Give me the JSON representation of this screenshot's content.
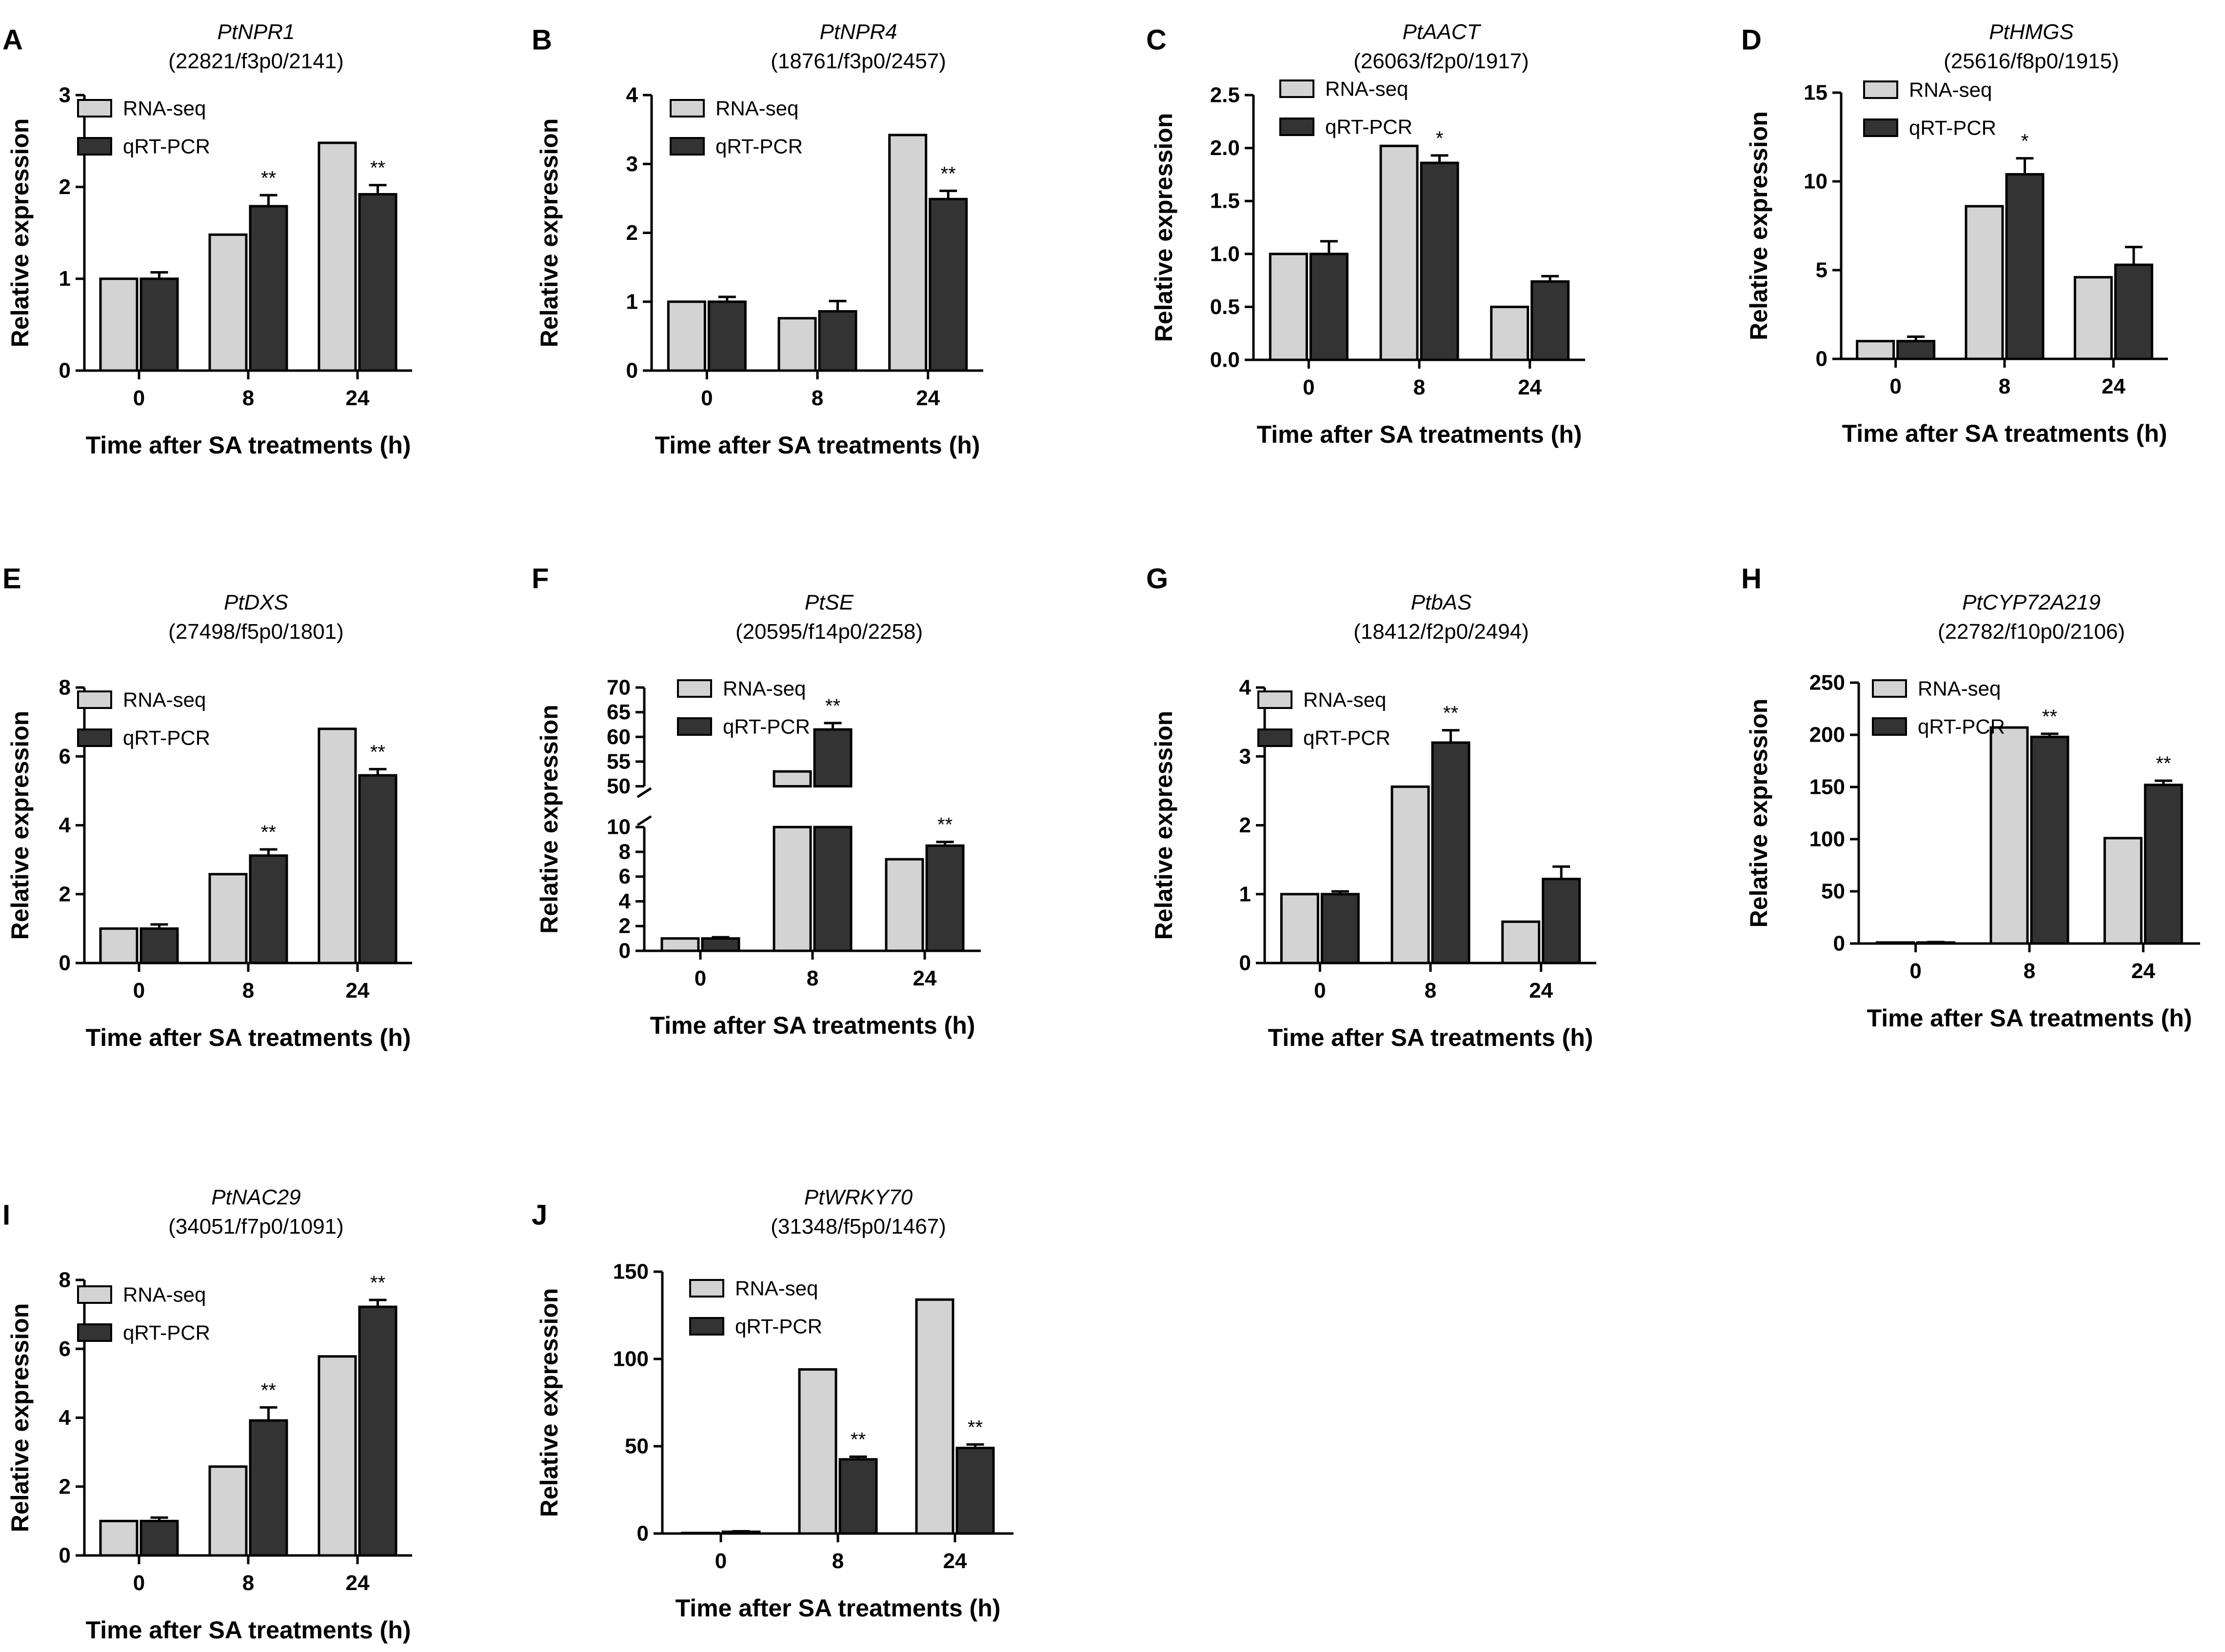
{
  "figure": {
    "colors": {
      "rna_seq": "#d3d3d3",
      "qrt_pcr": "#333333",
      "axis": "#000000"
    },
    "legend_labels": [
      "RNA-seq",
      "qRT-PCR"
    ]
  },
  "chart_data": [
    {
      "type": "bar",
      "panel": "A",
      "title": "PtNPR1",
      "subtitle": "(22821/f3p0/2141)",
      "xlabel": "Time after SA treatments (h)",
      "ylabel": "Relative expression",
      "categories": [
        "0",
        "8",
        "24"
      ],
      "yticks": [
        "0",
        "1",
        "2",
        "3"
      ],
      "ylim": [
        0,
        3
      ],
      "series": [
        {
          "name": "RNA-seq",
          "values": [
            1.0,
            1.48,
            2.48
          ]
        },
        {
          "name": "qRT-PCR",
          "values": [
            1.0,
            1.79,
            1.92
          ],
          "errors": [
            0.07,
            0.12,
            0.1
          ],
          "sig": [
            "",
            "**",
            "**"
          ]
        }
      ]
    },
    {
      "type": "bar",
      "panel": "B",
      "title": "PtNPR4",
      "subtitle": "(18761/f3p0/2457)",
      "xlabel": "Time after SA treatments (h)",
      "ylabel": "Relative expression",
      "categories": [
        "0",
        "8",
        "24"
      ],
      "yticks": [
        "0",
        "1",
        "2",
        "3",
        "4"
      ],
      "ylim": [
        0,
        4
      ],
      "series": [
        {
          "name": "RNA-seq",
          "values": [
            1.0,
            0.76,
            3.42
          ]
        },
        {
          "name": "qRT-PCR",
          "values": [
            1.0,
            0.86,
            2.49
          ],
          "errors": [
            0.07,
            0.15,
            0.12
          ],
          "sig": [
            "",
            "",
            "**"
          ]
        }
      ]
    },
    {
      "type": "bar",
      "panel": "C",
      "title": "PtAACT",
      "subtitle": "(26063/f2p0/1917)",
      "xlabel": "Time after SA treatments (h)",
      "ylabel": "Relative expression",
      "categories": [
        "0",
        "8",
        "24"
      ],
      "yticks": [
        "0.0",
        "0.5",
        "1.0",
        "1.5",
        "2.0",
        "2.5"
      ],
      "ylim": [
        0,
        2.5
      ],
      "series": [
        {
          "name": "RNA-seq",
          "values": [
            1.0,
            2.02,
            0.5
          ]
        },
        {
          "name": "qRT-PCR",
          "values": [
            1.0,
            1.86,
            0.74
          ],
          "errors": [
            0.12,
            0.07,
            0.05
          ],
          "sig": [
            "",
            "*",
            ""
          ]
        }
      ]
    },
    {
      "type": "bar",
      "panel": "D",
      "title": "PtHMGS",
      "subtitle": "(25616/f8p0/1915)",
      "xlabel": "Time after SA treatments (h)",
      "ylabel": "Relative expression",
      "categories": [
        "0",
        "8",
        "24"
      ],
      "yticks": [
        "0",
        "5",
        "10",
        "15"
      ],
      "ylim": [
        0,
        15
      ],
      "series": [
        {
          "name": "RNA-seq",
          "values": [
            1.0,
            8.6,
            4.6
          ]
        },
        {
          "name": "qRT-PCR",
          "values": [
            1.0,
            10.4,
            5.3
          ],
          "errors": [
            0.25,
            0.9,
            1.0
          ],
          "sig": [
            "",
            "*",
            ""
          ]
        }
      ]
    },
    {
      "type": "bar",
      "panel": "E",
      "title": "PtDXS",
      "subtitle": "(27498/f5p0/1801)",
      "xlabel": "Time after SA treatments (h)",
      "ylabel": "Relative expression",
      "categories": [
        "0",
        "8",
        "24"
      ],
      "yticks": [
        "0",
        "2",
        "4",
        "6",
        "8"
      ],
      "ylim": [
        0,
        8
      ],
      "series": [
        {
          "name": "RNA-seq",
          "values": [
            1.0,
            2.58,
            6.8
          ]
        },
        {
          "name": "qRT-PCR",
          "values": [
            1.0,
            3.12,
            5.45
          ],
          "errors": [
            0.12,
            0.18,
            0.18
          ],
          "sig": [
            "",
            "**",
            "**"
          ]
        }
      ]
    },
    {
      "type": "bar",
      "panel": "F",
      "title": "PtSE",
      "subtitle": "(20595/f14p0/2258)",
      "xlabel": "Time after SA treatments (h)",
      "ylabel": "Relative expression",
      "categories": [
        "0",
        "8",
        "24"
      ],
      "yticks_lower": [
        "0",
        "2",
        "4",
        "6",
        "8",
        "10"
      ],
      "yticks_upper": [
        "50",
        "55",
        "60",
        "65",
        "70"
      ],
      "axis_break": [
        10,
        50
      ],
      "ylim": [
        0,
        70
      ],
      "series": [
        {
          "name": "RNA-seq",
          "values": [
            1.0,
            53,
            7.4
          ]
        },
        {
          "name": "qRT-PCR",
          "values": [
            1.0,
            61.5,
            8.5
          ],
          "errors": [
            0.1,
            1.3,
            0.3
          ],
          "sig": [
            "",
            "**",
            "**"
          ]
        }
      ]
    },
    {
      "type": "bar",
      "panel": "G",
      "title": "PtbAS",
      "subtitle": "(18412/f2p0/2494)",
      "xlabel": "Time after SA treatments (h)",
      "ylabel": "Relative expression",
      "categories": [
        "0",
        "8",
        "24"
      ],
      "yticks": [
        "0",
        "1",
        "2",
        "3",
        "4"
      ],
      "ylim": [
        0,
        4
      ],
      "series": [
        {
          "name": "RNA-seq",
          "values": [
            1.0,
            2.56,
            0.6
          ]
        },
        {
          "name": "qRT-PCR",
          "values": [
            1.0,
            3.2,
            1.22
          ],
          "errors": [
            0.04,
            0.18,
            0.18
          ],
          "sig": [
            "",
            "**",
            ""
          ]
        }
      ]
    },
    {
      "type": "bar",
      "panel": "H",
      "title": "PtCYP72A219",
      "subtitle": "(22782/f10p0/2106)",
      "xlabel": "Time after SA treatments (h)",
      "ylabel": "Relative expression",
      "categories": [
        "0",
        "8",
        "24"
      ],
      "yticks": [
        "0",
        "50",
        "100",
        "150",
        "200",
        "250"
      ],
      "ylim": [
        0,
        250
      ],
      "series": [
        {
          "name": "RNA-seq",
          "values": [
            1.0,
            207,
            101
          ]
        },
        {
          "name": "qRT-PCR",
          "values": [
            1.0,
            198,
            152
          ],
          "errors": [
            0.4,
            3,
            4
          ],
          "sig": [
            "",
            "**",
            "**"
          ]
        }
      ]
    },
    {
      "type": "bar",
      "panel": "I",
      "title": "PtNAC29",
      "subtitle": "(34051/f7p0/1091)",
      "xlabel": "Time after SA treatments (h)",
      "ylabel": "Relative expression",
      "categories": [
        "0",
        "8",
        "24"
      ],
      "yticks": [
        "0",
        "2",
        "4",
        "6",
        "8"
      ],
      "ylim": [
        0,
        8
      ],
      "series": [
        {
          "name": "RNA-seq",
          "values": [
            1.0,
            2.58,
            5.78
          ]
        },
        {
          "name": "qRT-PCR",
          "values": [
            1.0,
            3.92,
            7.22
          ],
          "errors": [
            0.1,
            0.38,
            0.2
          ],
          "sig": [
            "",
            "**",
            "**"
          ]
        }
      ]
    },
    {
      "type": "bar",
      "panel": "J",
      "title": "PtWRKY70",
      "subtitle": "(31348/f5p0/1467)",
      "xlabel": "Time after SA treatments (h)",
      "ylabel": "Relative expression",
      "categories": [
        "0",
        "8",
        "24"
      ],
      "yticks": [
        "0",
        "50",
        "100",
        "150"
      ],
      "ylim": [
        0,
        150
      ],
      "series": [
        {
          "name": "RNA-seq",
          "values": [
            0.3,
            94,
            134
          ]
        },
        {
          "name": "qRT-PCR",
          "values": [
            1.0,
            42.5,
            49
          ],
          "errors": [
            0.3,
            1.5,
            2
          ],
          "sig": [
            "",
            "**",
            "**"
          ]
        }
      ]
    }
  ]
}
